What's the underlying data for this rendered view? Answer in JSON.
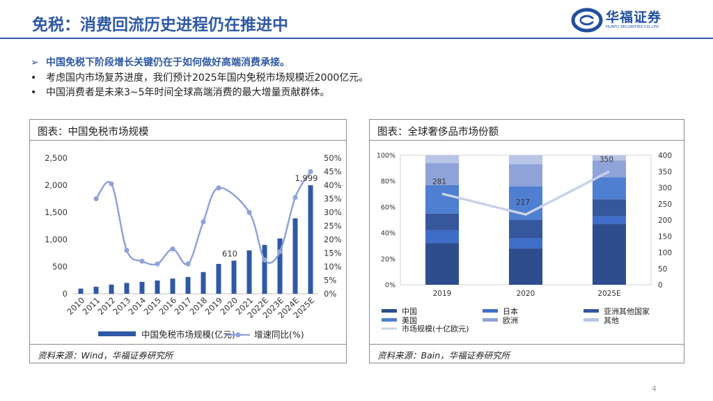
{
  "header": {
    "title": "免税：消费回流历史进程仍在推进中"
  },
  "logo": {
    "cn": "华福证券",
    "en": "HUAFU SECURITIES CO.,LTD"
  },
  "bullets": [
    {
      "marker": "➢",
      "text": "中国免税下阶段增长关键仍在于如何做好高端消费承接。"
    },
    {
      "marker": "•",
      "text": "考虑国内市场复苏进度，我们预计2025年国内免税市场规模近2000亿元。"
    },
    {
      "marker": "•",
      "text": "中国消费者是未来3~5年时间全球高端消费的最大增量贡献群体。"
    }
  ],
  "panel1": {
    "heading": "图表：中国免税市场规模",
    "source": "资料来源：Wind，华福证券研究所"
  },
  "panel2": {
    "heading": "图表：全球奢侈品市场份额",
    "source": "资料来源：Bain，华福证券研究所"
  },
  "colors": {
    "bar": "#2f59a6",
    "line": "#8fa3d9",
    "title": "#2f59a6"
  },
  "page_number": "4",
  "chart_data": [
    {
      "type": "bar",
      "title": "中国免税市场规模",
      "categories": [
        "2010",
        "2011",
        "2012",
        "2013",
        "2014",
        "2015",
        "2016",
        "2017",
        "2018",
        "2019",
        "2020",
        "2021",
        "2022E",
        "2023E",
        "2024E",
        "2025E"
      ],
      "series": [
        {
          "name": "中国免税市场规模(亿元)",
          "type": "bar",
          "axis": "left",
          "values": [
            95,
            130,
            170,
            200,
            220,
            245,
            280,
            310,
            400,
            550,
            610,
            800,
            900,
            1020,
            1390,
            1999
          ]
        },
        {
          "name": "增速同比(%)",
          "type": "line",
          "axis": "right",
          "values": [
            null,
            35.0,
            40.5,
            16.0,
            12.0,
            11.0,
            16.5,
            11.0,
            26.5,
            39.0,
            null,
            30.0,
            12.5,
            15.5,
            35.5,
            45.0
          ]
        }
      ],
      "data_labels": [
        {
          "category": "2020",
          "text": "610"
        },
        {
          "category": "2025E",
          "text": "1,999"
        }
      ],
      "ylim": [
        0,
        2500
      ],
      "yticks": [
        "0",
        "500",
        "1,000",
        "1,500",
        "2,000",
        "2,500"
      ],
      "y2lim": [
        0,
        50
      ],
      "y2ticks": [
        "0%",
        "5%",
        "10%",
        "15%",
        "20%",
        "25%",
        "30%",
        "35%",
        "40%",
        "45%",
        "50%"
      ],
      "legend": [
        "中国免税市场规模(亿元)",
        "增速同比(%)"
      ]
    },
    {
      "type": "bar",
      "stacked": true,
      "title": "全球奢侈品市场份额",
      "categories": [
        "2019",
        "2020",
        "2025E"
      ],
      "series": [
        {
          "name": "中国",
          "color": "#2e4d8c",
          "values": [
            32,
            28,
            47
          ]
        },
        {
          "name": "日本",
          "color": "#3e6ec7",
          "values": [
            10,
            8,
            6
          ]
        },
        {
          "name": "亚洲其他国家",
          "color": "#36579c",
          "values": [
            13,
            14,
            13
          ]
        },
        {
          "name": "美国",
          "color": "#4f7fd0",
          "values": [
            22,
            26,
            17
          ]
        },
        {
          "name": "欧洲",
          "color": "#8fa3d9",
          "values": [
            17,
            17,
            13
          ]
        },
        {
          "name": "其他",
          "color": "#b8c5e6",
          "values": [
            6,
            7,
            4
          ]
        }
      ],
      "line": {
        "name": "市场规模(十亿欧元)",
        "axis": "right",
        "color": "#c9d2ea",
        "values": [
          281,
          217,
          350
        ]
      },
      "ylim": [
        0,
        100
      ],
      "yticks": [
        "0%",
        "20%",
        "40%",
        "60%",
        "80%",
        "100%"
      ],
      "y2lim": [
        0,
        400
      ],
      "y2ticks": [
        "0",
        "50",
        "100",
        "150",
        "200",
        "250",
        "300",
        "350",
        "400"
      ],
      "legend": [
        "中国",
        "日本",
        "亚洲其他国家",
        "美国",
        "欧洲",
        "其他",
        "市场规模(十亿欧元)"
      ]
    }
  ]
}
